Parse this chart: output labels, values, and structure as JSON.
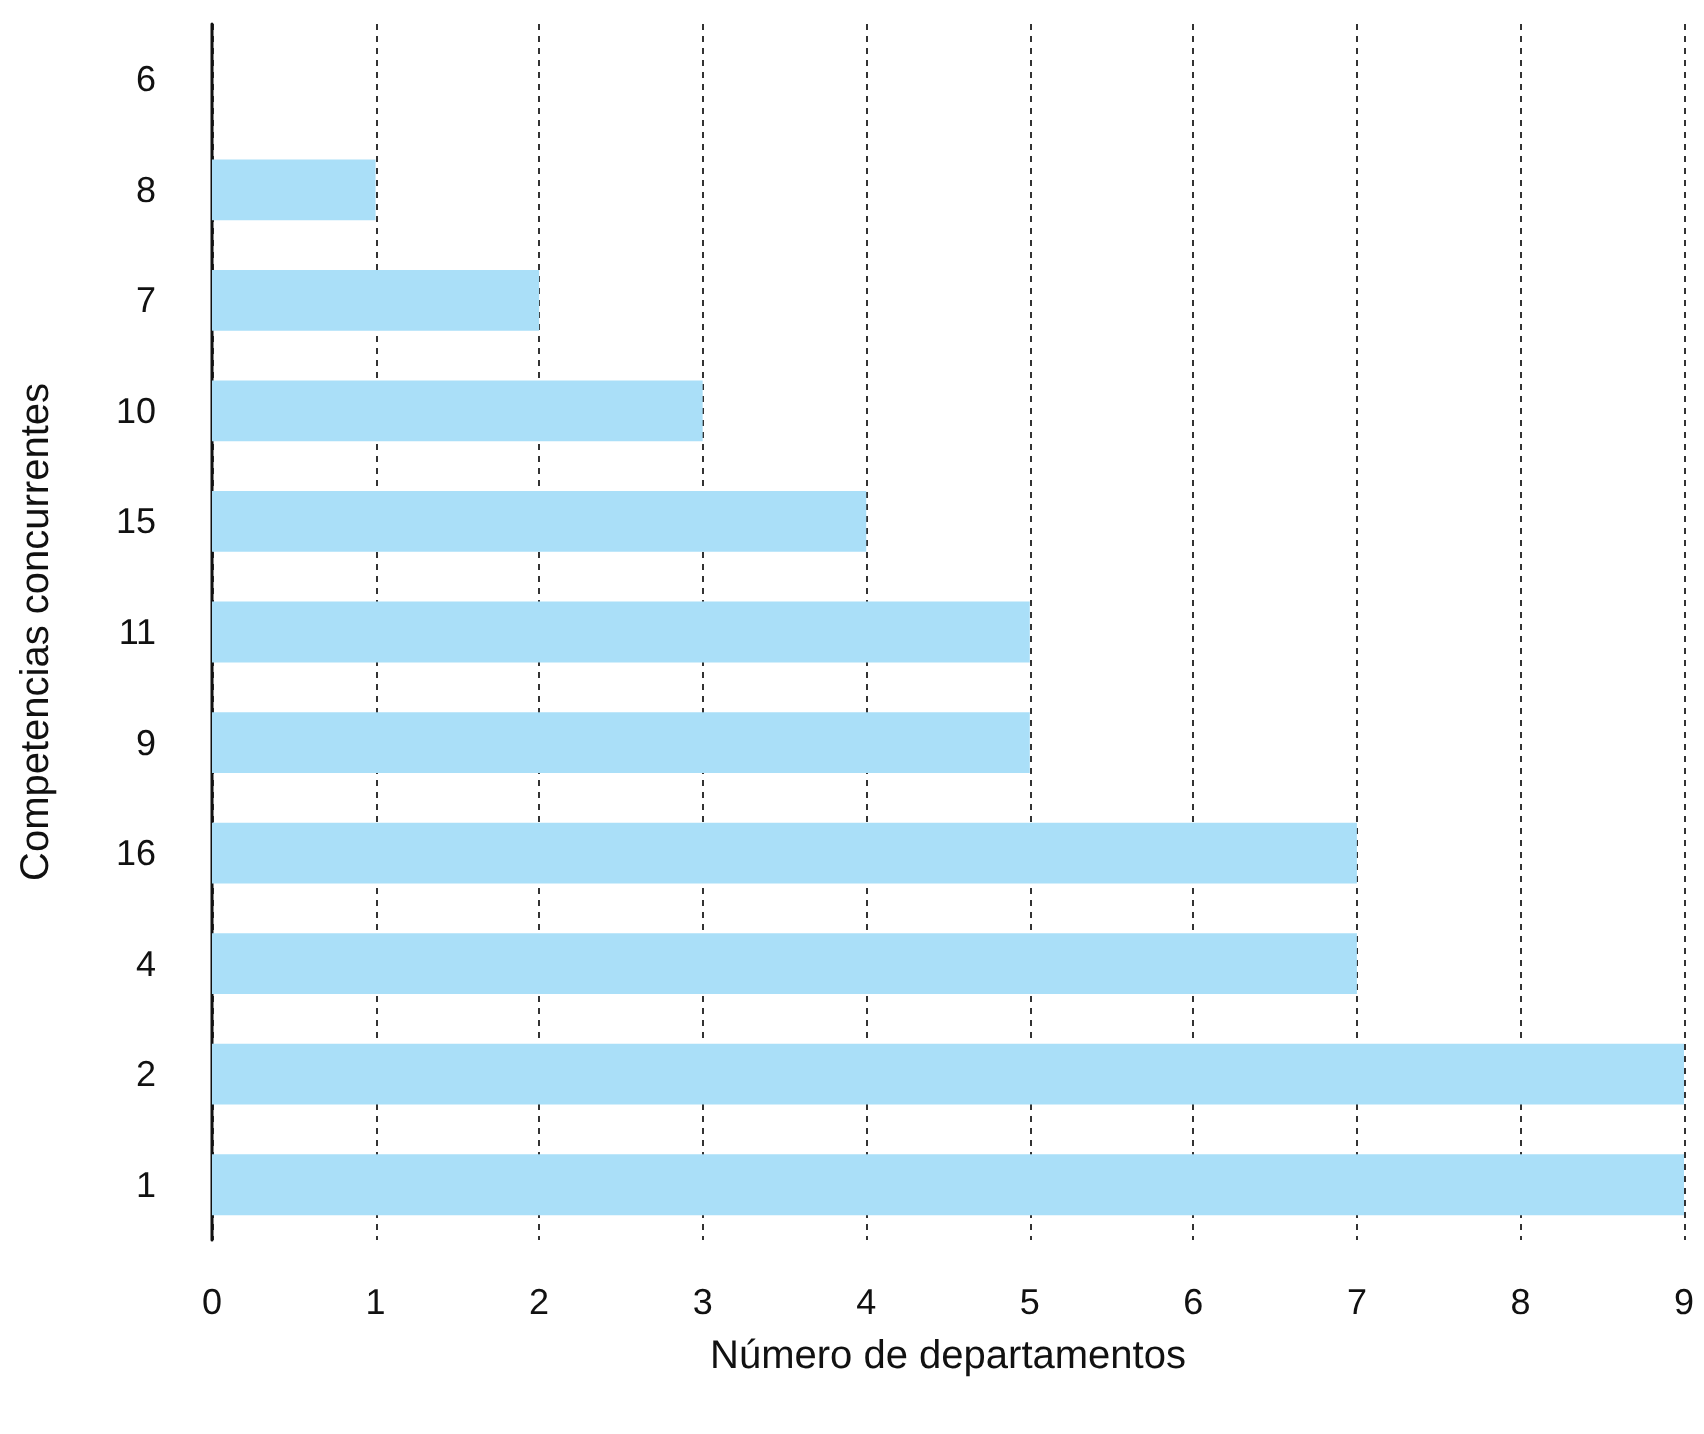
{
  "chart_data": {
    "type": "bar",
    "orientation": "horizontal",
    "xlabel": "Número de departamentos",
    "ylabel": "Competencias concurrentes",
    "categories": [
      "6",
      "8",
      "7",
      "10",
      "15",
      "11",
      "9",
      "16",
      "4",
      "2",
      "1"
    ],
    "values": [
      0,
      1,
      2,
      3,
      4,
      5,
      5,
      7,
      7,
      9,
      9
    ],
    "color": "#aadff8",
    "xlim": [
      0,
      9
    ],
    "xticks": [
      0,
      1,
      2,
      3,
      4,
      5,
      6,
      7,
      8,
      9
    ],
    "grid": "x"
  }
}
